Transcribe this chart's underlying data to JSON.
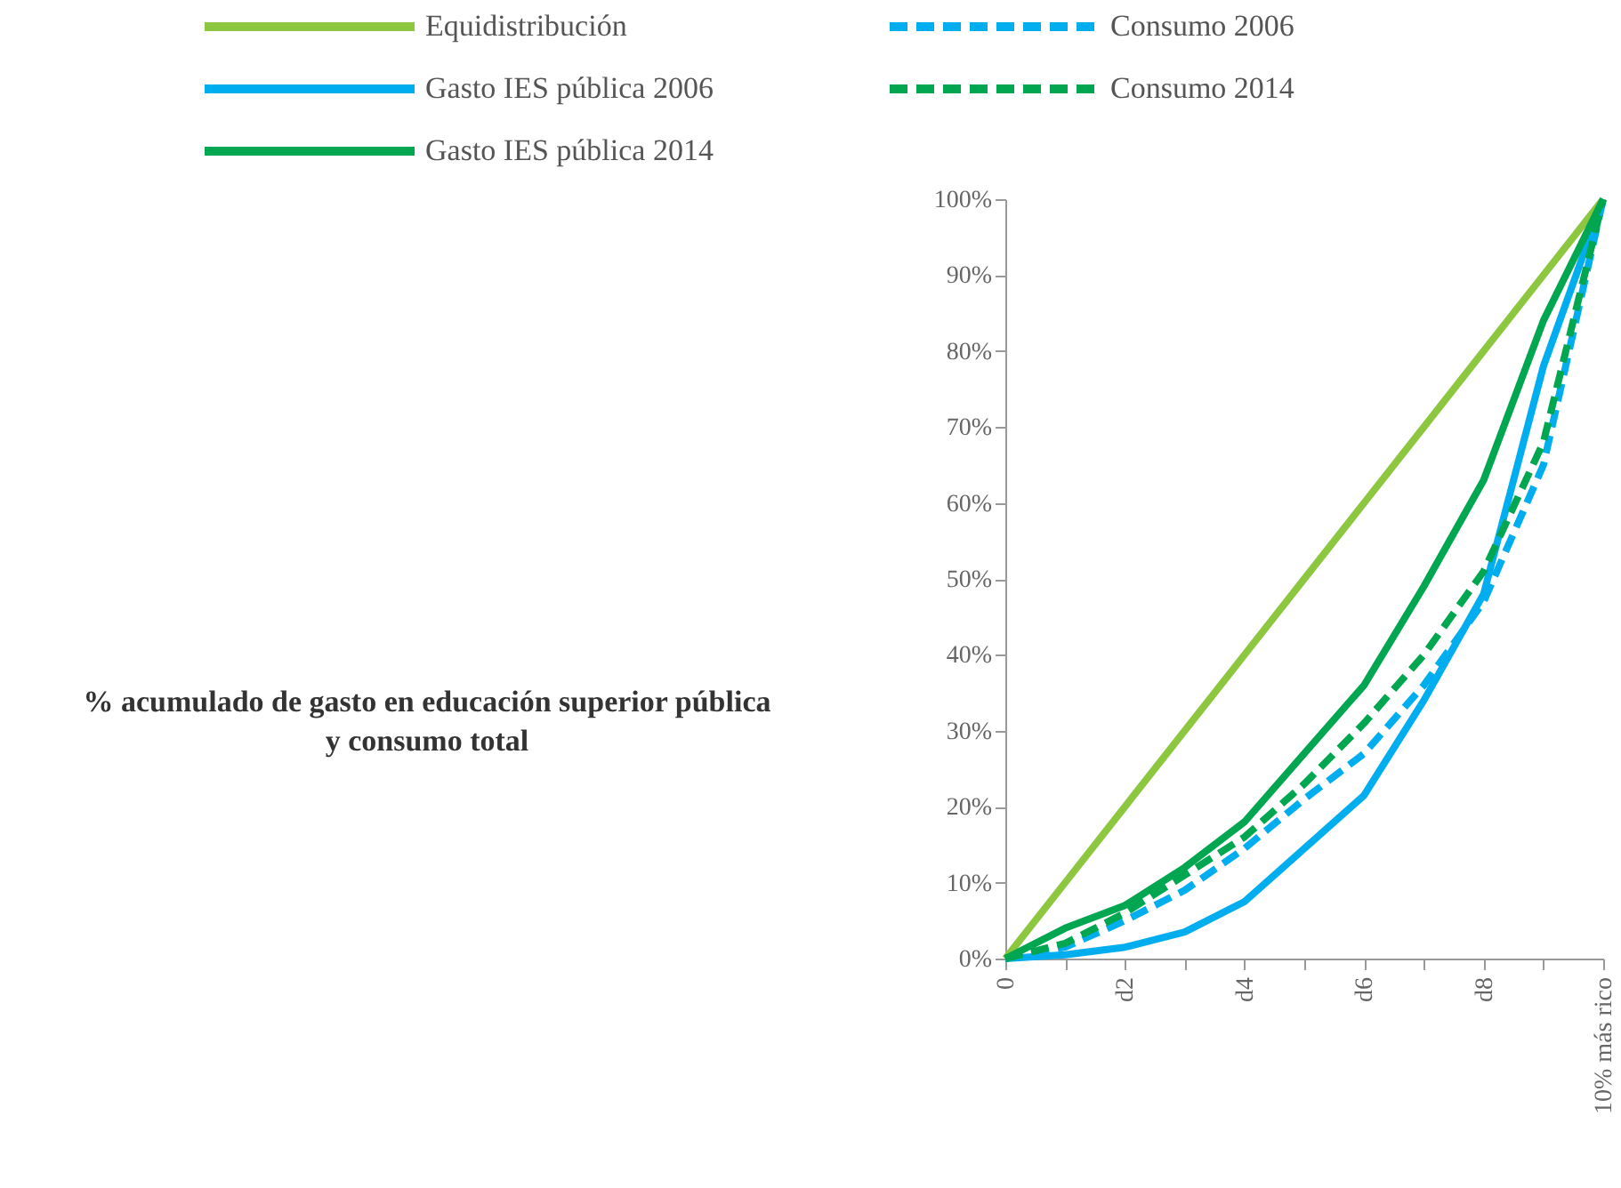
{
  "chart_data": {
    "type": "line",
    "annotations": [
      "% acumulado de gasto en educación superior pública y consumo total"
    ],
    "categories": [
      "0",
      null,
      "d2",
      null,
      "d4",
      null,
      "d6",
      null,
      "d8",
      null,
      "10% más rico"
    ],
    "series": [
      {
        "name": "Equidistribución",
        "color": "#8dc63f",
        "line_style": "solid",
        "values": [
          0,
          10,
          20,
          30,
          40,
          50,
          60,
          70,
          80,
          90,
          100
        ]
      },
      {
        "name": "Consumo 2006",
        "color": "#00aeef",
        "line_style": "dashed",
        "values": [
          0,
          1.5,
          5,
          9,
          14.5,
          21,
          27,
          36,
          47,
          65,
          100
        ]
      },
      {
        "name": "Gasto IES pública 2006",
        "color": "#00aeef",
        "line_style": "solid",
        "values": [
          0,
          0.5,
          1.5,
          3.5,
          7.5,
          14.5,
          21.5,
          34,
          48,
          78,
          100
        ]
      },
      {
        "name": "Consumo 2014",
        "color": "#00a650",
        "line_style": "dashed",
        "values": [
          0,
          2,
          6,
          11,
          16,
          23,
          31,
          40,
          51,
          68,
          100
        ]
      },
      {
        "name": "Gasto IES pública 2014",
        "color": "#00a650",
        "line_style": "solid",
        "values": [
          0,
          4,
          7,
          12,
          18,
          27,
          36,
          49,
          63,
          84,
          100
        ]
      }
    ],
    "ylim": [
      0,
      100
    ],
    "yticks": [
      {
        "value": 0,
        "label": "0%"
      },
      {
        "value": 10,
        "label": "10%"
      },
      {
        "value": 20,
        "label": "20%"
      },
      {
        "value": 30,
        "label": "30%"
      },
      {
        "value": 40,
        "label": "40%"
      },
      {
        "value": 50,
        "label": "50%"
      },
      {
        "value": 60,
        "label": "60%"
      },
      {
        "value": 70,
        "label": "70%"
      },
      {
        "value": 80,
        "label": "80%"
      },
      {
        "value": 90,
        "label": "90%"
      },
      {
        "value": 100,
        "label": "100%"
      }
    ],
    "grid": false,
    "legend": "top",
    "marker": "none"
  }
}
